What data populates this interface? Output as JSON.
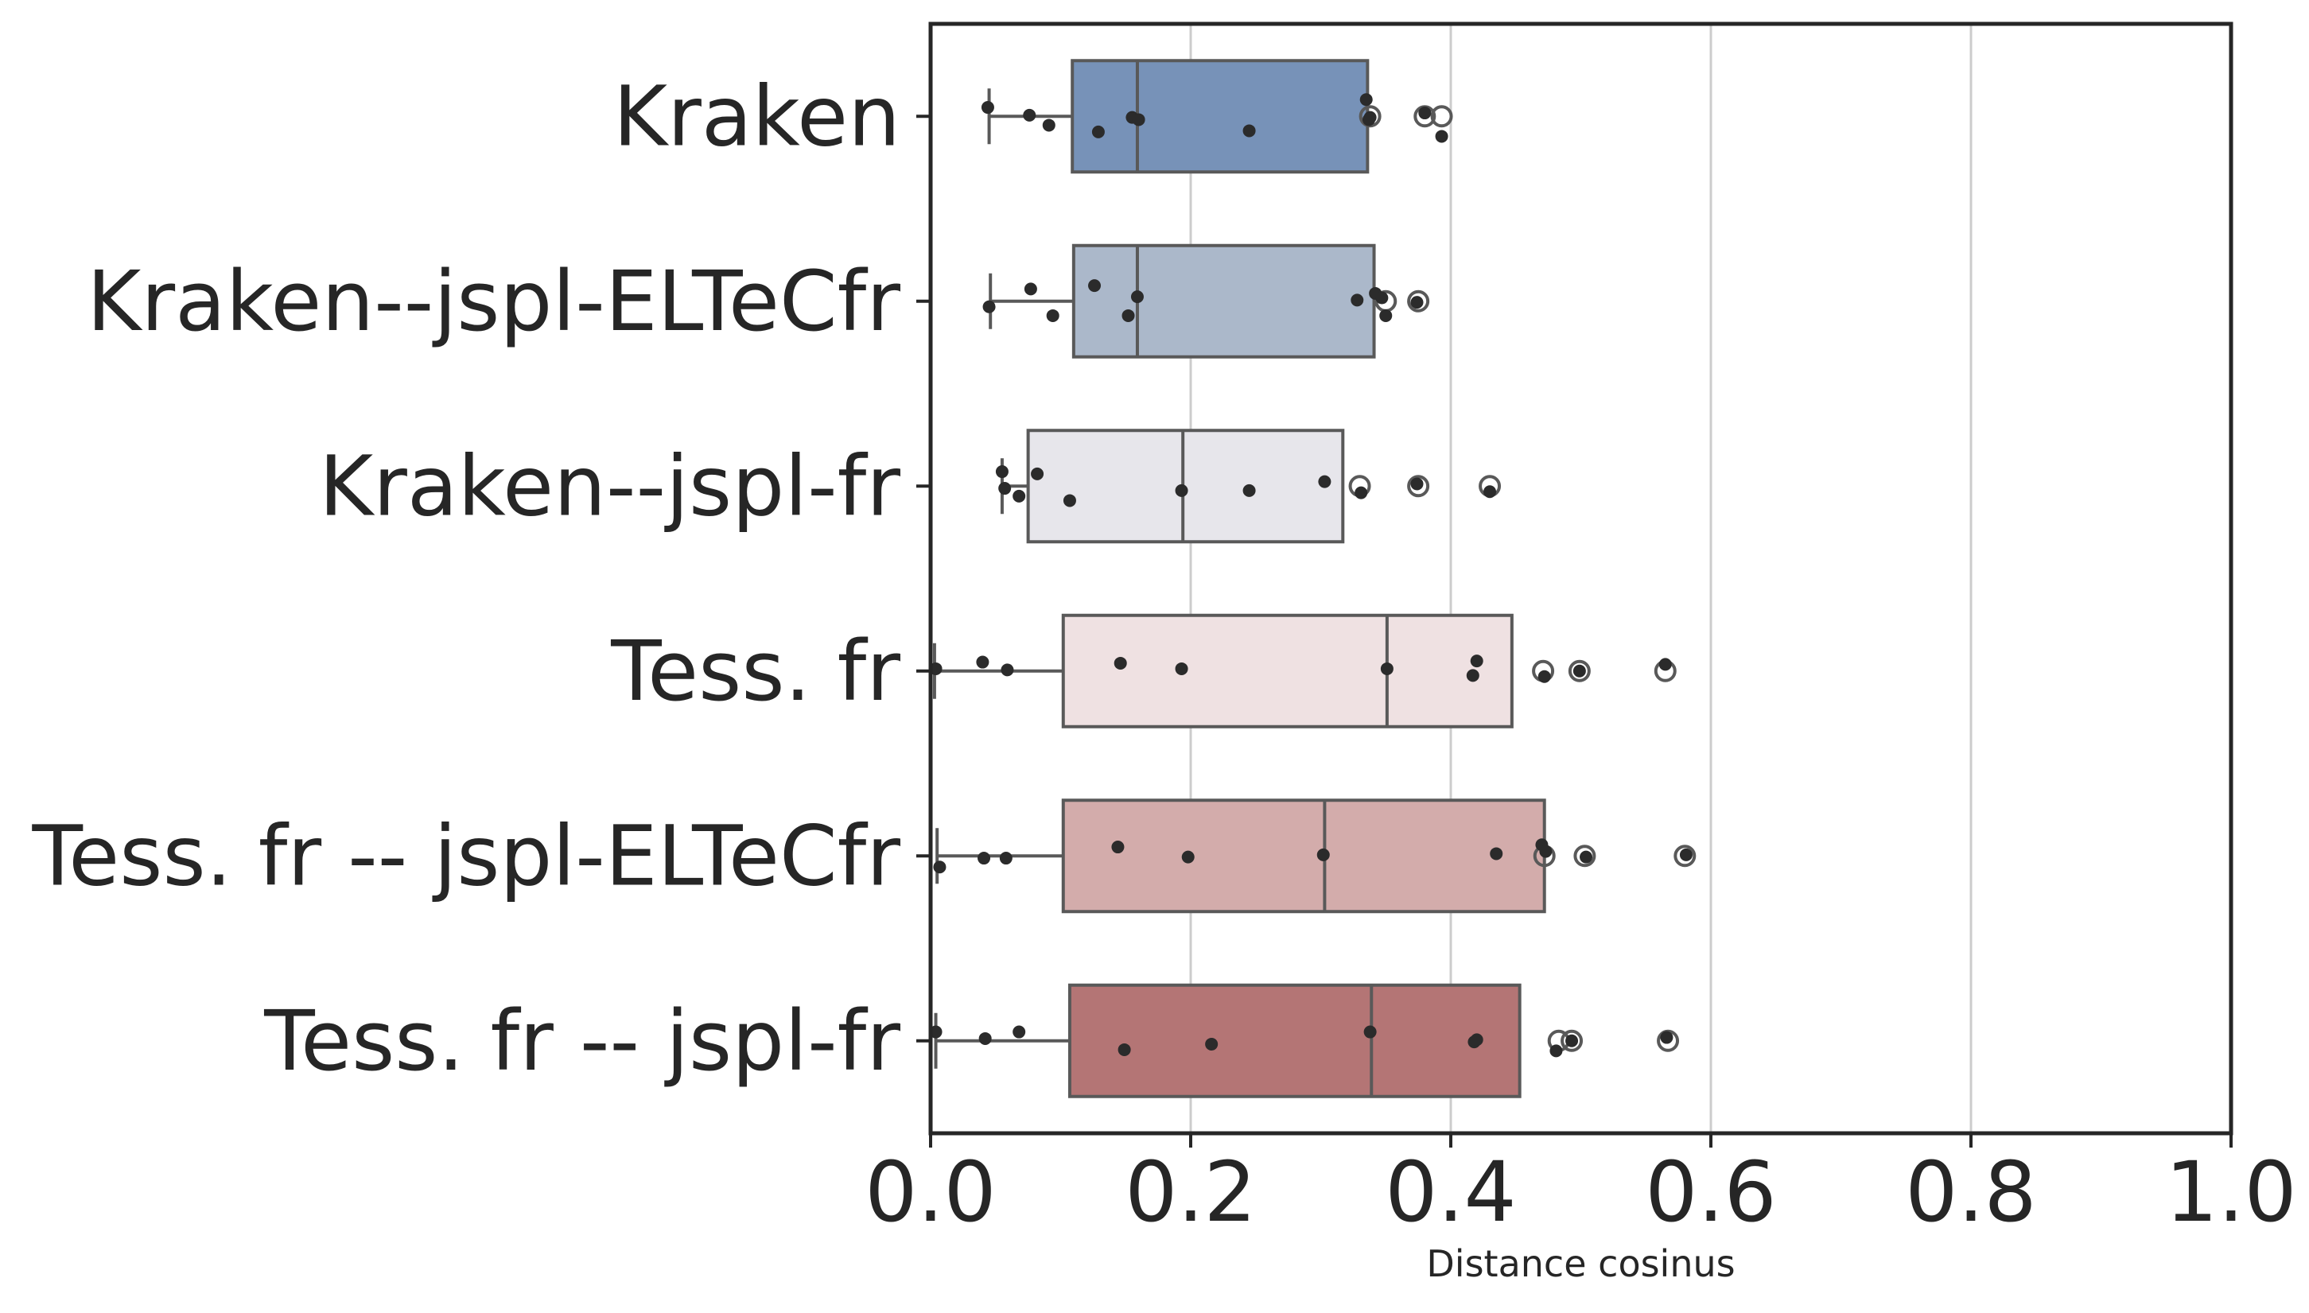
{
  "chart_data": {
    "type": "boxplot",
    "orientation": "horizontal",
    "xlabel": "Distance cosinus",
    "xlim": [
      0.0,
      1.0
    ],
    "xticks": [
      "0.0",
      "0.2",
      "0.4",
      "0.6",
      "0.8",
      "1.0"
    ],
    "xtick_values": [
      0.0,
      0.2,
      0.4,
      0.6,
      0.8,
      1.0
    ],
    "grid": "vertical",
    "colors": {
      "box_edge": "#595959",
      "point": "#2b2b2b",
      "grid": "#cccccc",
      "axis": "#262626"
    },
    "categories": [
      {
        "label": "Kraken",
        "color": "#7792b8",
        "whisker_low": 0.045,
        "q1": 0.109,
        "median": 0.159,
        "q3": 0.336,
        "whisker_high": 0.336,
        "outliers": [
          0.338,
          0.38,
          0.393
        ],
        "points": [
          [
            0.044,
            -0.08
          ],
          [
            0.076,
            -0.01
          ],
          [
            0.091,
            0.08
          ],
          [
            0.129,
            0.14
          ],
          [
            0.155,
            0.01
          ],
          [
            0.16,
            0.03
          ],
          [
            0.245,
            0.13
          ],
          [
            0.335,
            -0.15
          ],
          [
            0.337,
            0.03
          ],
          [
            0.338,
            0.01
          ],
          [
            0.38,
            -0.03
          ],
          [
            0.393,
            0.18
          ]
        ]
      },
      {
        "label": "Kraken--jspl-ELTeCfr",
        "color": "#abb8ca",
        "whisker_low": 0.046,
        "q1": 0.11,
        "median": 0.159,
        "q3": 0.341,
        "whisker_high": 0.341,
        "outliers": [
          0.35,
          0.375
        ],
        "points": [
          [
            0.045,
            0.05
          ],
          [
            0.077,
            -0.11
          ],
          [
            0.094,
            0.13
          ],
          [
            0.126,
            -0.14
          ],
          [
            0.152,
            0.13
          ],
          [
            0.159,
            -0.04
          ],
          [
            0.328,
            -0.01
          ],
          [
            0.342,
            -0.07
          ],
          [
            0.347,
            -0.03
          ],
          [
            0.35,
            0.13
          ],
          [
            0.374,
            0.01
          ]
        ]
      },
      {
        "label": "Kraken--jspl-fr",
        "color": "#e7e6eb",
        "whisker_low": 0.055,
        "q1": 0.075,
        "median": 0.194,
        "q3": 0.317,
        "whisker_high": 0.317,
        "outliers": [
          0.33,
          0.375,
          0.43
        ],
        "points": [
          [
            0.055,
            -0.13
          ],
          [
            0.057,
            0.02
          ],
          [
            0.068,
            0.09
          ],
          [
            0.082,
            -0.11
          ],
          [
            0.107,
            0.13
          ],
          [
            0.193,
            0.04
          ],
          [
            0.245,
            0.04
          ],
          [
            0.303,
            -0.04
          ],
          [
            0.331,
            0.06
          ],
          [
            0.374,
            -0.02
          ],
          [
            0.43,
            0.05
          ]
        ]
      },
      {
        "label": "Tess. fr",
        "color": "#efe1e2",
        "whisker_low": 0.003,
        "q1": 0.102,
        "median": 0.351,
        "q3": 0.447,
        "whisker_high": 0.447,
        "outliers": [
          0.471,
          0.499,
          0.565
        ],
        "points": [
          [
            0.004,
            -0.02
          ],
          [
            0.04,
            -0.08
          ],
          [
            0.059,
            -0.01
          ],
          [
            0.146,
            -0.07
          ],
          [
            0.193,
            -0.02
          ],
          [
            0.351,
            -0.02
          ],
          [
            0.42,
            -0.09
          ],
          [
            0.417,
            0.04
          ],
          [
            0.472,
            0.05
          ],
          [
            0.499,
            0.0
          ],
          [
            0.565,
            -0.06
          ]
        ]
      },
      {
        "label": "Tess. fr -- jspl-ELTeCfr",
        "color": "#d3acab",
        "whisker_low": 0.005,
        "q1": 0.102,
        "median": 0.303,
        "q3": 0.472,
        "whisker_high": 0.472,
        "outliers": [
          0.472,
          0.503,
          0.58
        ],
        "points": [
          [
            0.007,
            0.1
          ],
          [
            0.041,
            0.02
          ],
          [
            0.058,
            0.02
          ],
          [
            0.144,
            -0.08
          ],
          [
            0.198,
            0.01
          ],
          [
            0.302,
            -0.01
          ],
          [
            0.435,
            -0.02
          ],
          [
            0.47,
            -0.1
          ],
          [
            0.473,
            -0.04
          ],
          [
            0.504,
            0.01
          ],
          [
            0.581,
            -0.01
          ]
        ]
      },
      {
        "label": "Tess. fr -- jspl-fr",
        "color": "#b47575",
        "whisker_low": 0.004,
        "q1": 0.107,
        "median": 0.339,
        "q3": 0.453,
        "whisker_high": 0.453,
        "outliers": [
          0.483,
          0.493,
          0.567
        ],
        "points": [
          [
            0.004,
            -0.08
          ],
          [
            0.042,
            -0.02
          ],
          [
            0.068,
            -0.08
          ],
          [
            0.149,
            0.08
          ],
          [
            0.216,
            0.03
          ],
          [
            0.338,
            -0.08
          ],
          [
            0.418,
            0.01
          ],
          [
            0.42,
            -0.01
          ],
          [
            0.481,
            0.09
          ],
          [
            0.493,
            0.0
          ],
          [
            0.566,
            -0.03
          ]
        ]
      }
    ]
  }
}
